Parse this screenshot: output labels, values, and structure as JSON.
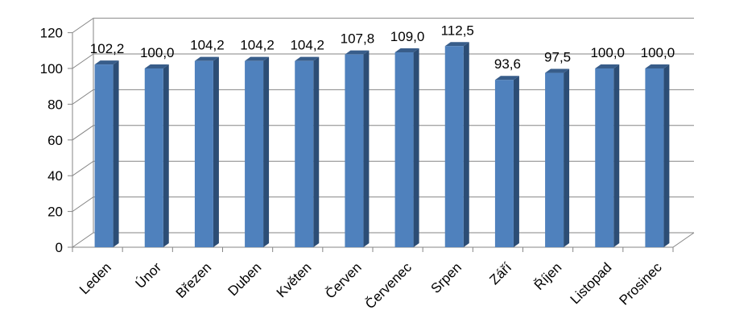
{
  "chart_data": {
    "type": "bar",
    "title": "",
    "xlabel": "",
    "ylabel": "",
    "categories": [
      "Leden",
      "Únor",
      "Březen",
      "Duben",
      "Květen",
      "Červen",
      "Červenec",
      "Srpen",
      "Září",
      "Říjen",
      "Listopad",
      "Prosinec"
    ],
    "values": [
      102.2,
      100.0,
      104.2,
      104.2,
      104.2,
      107.8,
      109.0,
      112.5,
      93.6,
      97.5,
      100.0,
      100.0
    ],
    "data_labels": [
      "102,2",
      "100,0",
      "104,2",
      "104,2",
      "104,2",
      "107,8",
      "109,0",
      "112,5",
      "93,6",
      "97,5",
      "100,0",
      "100,0"
    ],
    "yticks": [
      0,
      20,
      40,
      60,
      80,
      100,
      120
    ],
    "ylim": [
      0,
      120
    ],
    "grid": true,
    "legend": "none",
    "style": "3d-columns",
    "colors": {
      "bar_front": "#4f81bd",
      "bar_side": "#2c4d75",
      "bar_top": "#385d8a",
      "grid": "#868686",
      "axis": "#868686"
    }
  }
}
